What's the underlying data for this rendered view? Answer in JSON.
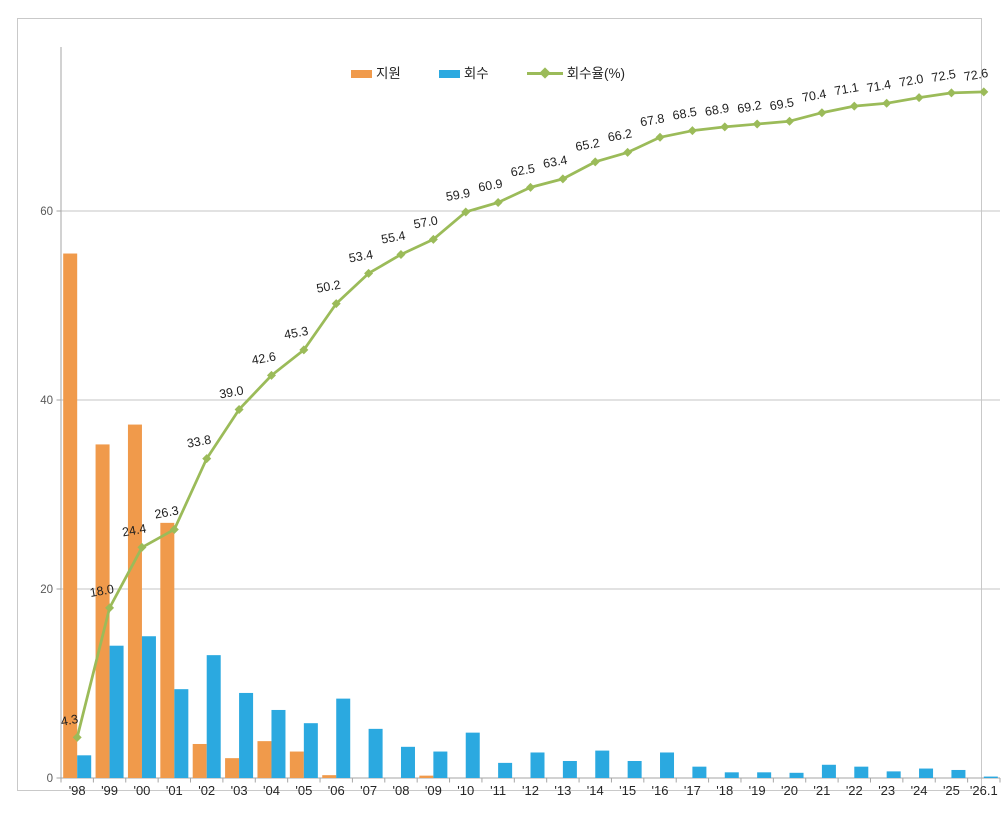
{
  "chart_data": {
    "type": "combo-bar-line",
    "title": "",
    "categories": [
      "'98",
      "'99",
      "'00",
      "'01",
      "'02",
      "'03",
      "'04",
      "'05",
      "'06",
      "'07",
      "'08",
      "'09",
      "'10",
      "'11",
      "'12",
      "'13",
      "'14",
      "'15",
      "'16",
      "'17",
      "'18",
      "'19",
      "'20",
      "'21",
      "'22",
      "'23",
      "'24",
      "'25",
      "'26.1"
    ],
    "series": [
      {
        "name": "지원",
        "key": "support",
        "type": "bar",
        "color": "#F09A4B",
        "values": [
          55.5,
          35.3,
          37.4,
          27.0,
          3.6,
          2.1,
          3.9,
          2.8,
          0.3,
          0,
          0,
          0.25,
          0,
          0,
          0,
          0,
          0,
          0,
          0,
          0,
          0,
          0,
          0,
          0,
          0,
          0,
          0,
          0,
          0
        ]
      },
      {
        "name": "회수",
        "key": "recovery",
        "type": "bar",
        "color": "#2BA9E0",
        "values": [
          2.4,
          14.0,
          15.0,
          9.4,
          13.0,
          9.0,
          7.2,
          5.8,
          8.4,
          5.2,
          3.3,
          2.8,
          4.8,
          1.6,
          2.7,
          1.8,
          2.9,
          1.8,
          2.7,
          1.2,
          0.6,
          0.6,
          0.55,
          1.4,
          1.2,
          0.7,
          1.0,
          0.85,
          0.15
        ]
      },
      {
        "name": "회수율(%)",
        "key": "recovery-rate",
        "type": "line",
        "color": "#9BBB59",
        "data_labels": true,
        "values": [
          4.3,
          18.0,
          24.4,
          26.3,
          33.8,
          39.0,
          42.6,
          45.3,
          50.2,
          53.4,
          55.4,
          57.0,
          59.9,
          60.9,
          62.5,
          63.4,
          65.2,
          66.2,
          67.8,
          68.5,
          68.9,
          69.2,
          69.5,
          70.4,
          71.1,
          71.4,
          72.0,
          72.5,
          72.6
        ]
      }
    ],
    "y_axis": {
      "ticks": [
        0,
        20,
        40,
        60
      ],
      "min": 0,
      "max": 77
    },
    "x_axis": {
      "label_color": "#262626"
    },
    "grid": true,
    "legend_position": "top-center",
    "style": {
      "grid_color": "#c6c6c6",
      "axis_color": "#a6a6a6",
      "tick_label_color": "#595959",
      "data_label_color": "#1f1f1f",
      "frame_border_color": "#c9c9c9",
      "background": "#ffffff"
    }
  }
}
